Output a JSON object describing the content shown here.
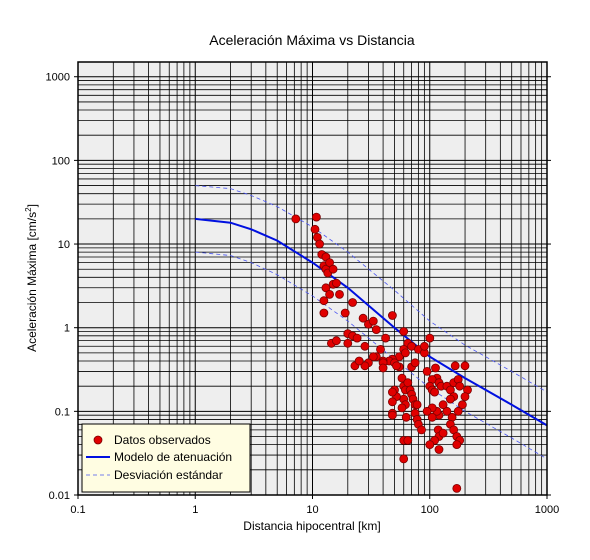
{
  "chart_data": {
    "type": "scatter",
    "title": "Aceleración Máxima vs Distancia",
    "xlabel": "Distancia hipocentral [km]",
    "ylabel_main": "Aceleración Máxima [cm/s",
    "ylabel_sup": "2",
    "ylabel_end": "]",
    "x_scale": "log",
    "y_scale": "log",
    "xlim": [
      0.1,
      1000
    ],
    "ylim": [
      0.01,
      1500
    ],
    "grid": true,
    "legend_position": "bottom-left",
    "x_ticks": [
      {
        "value": 0.1,
        "label": "0.1"
      },
      {
        "value": 1,
        "label": "1"
      },
      {
        "value": 10,
        "label": "10"
      },
      {
        "value": 100,
        "label": "100"
      },
      {
        "value": 1000,
        "label": "1000"
      }
    ],
    "y_ticks": [
      {
        "value": 0.01,
        "label": "0.01"
      },
      {
        "value": 0.1,
        "label": "0.1"
      },
      {
        "value": 1,
        "label": "1"
      },
      {
        "value": 10,
        "label": "10"
      },
      {
        "value": 100,
        "label": "100"
      },
      {
        "value": 1000,
        "label": "1000"
      }
    ],
    "series": [
      {
        "name": "Datos observados",
        "kind": "points",
        "color": "#e00000",
        "edge_color": "#7a0000",
        "points": [
          [
            7.2,
            20
          ],
          [
            10.8,
            21
          ],
          [
            10.5,
            15
          ],
          [
            11,
            12
          ],
          [
            11.5,
            10
          ],
          [
            12,
            7.5
          ],
          [
            13,
            7
          ],
          [
            12.5,
            5.5
          ],
          [
            13,
            5
          ],
          [
            14,
            6
          ],
          [
            13.5,
            4.5
          ],
          [
            15,
            5
          ],
          [
            15,
            3.3
          ],
          [
            16,
            3.4
          ],
          [
            13,
            3
          ],
          [
            14,
            2.5
          ],
          [
            17,
            2.5
          ],
          [
            12.5,
            2.1
          ],
          [
            22,
            2
          ],
          [
            12.5,
            1.5
          ],
          [
            19,
            1.5
          ],
          [
            27,
            1.3
          ],
          [
            30,
            1.1
          ],
          [
            33,
            1.2
          ],
          [
            48,
            1.4
          ],
          [
            20,
            0.85
          ],
          [
            22,
            0.8
          ],
          [
            24,
            0.75
          ],
          [
            28,
            0.6
          ],
          [
            14.5,
            0.65
          ],
          [
            16,
            0.7
          ],
          [
            20,
            0.65
          ],
          [
            35,
            0.95
          ],
          [
            42,
            0.75
          ],
          [
            60,
            0.9
          ],
          [
            65,
            0.65
          ],
          [
            70,
            0.6
          ],
          [
            80,
            0.55
          ],
          [
            60,
            0.55
          ],
          [
            55,
            0.45
          ],
          [
            62,
            0.5
          ],
          [
            48,
            0.42
          ],
          [
            45,
            0.4
          ],
          [
            50,
            0.38
          ],
          [
            55,
            0.34
          ],
          [
            40,
            0.4
          ],
          [
            40,
            0.38
          ],
          [
            35,
            0.45
          ],
          [
            38,
            0.55
          ],
          [
            33,
            0.45
          ],
          [
            30,
            0.38
          ],
          [
            28,
            0.35
          ],
          [
            23,
            0.35
          ],
          [
            25,
            0.4
          ],
          [
            40,
            0.33
          ],
          [
            52,
            0.35
          ],
          [
            70,
            0.34
          ],
          [
            75,
            0.38
          ],
          [
            90,
            0.5
          ],
          [
            100,
            0.75
          ],
          [
            90,
            0.6
          ],
          [
            95,
            0.3
          ],
          [
            112,
            0.33
          ],
          [
            115,
            0.25
          ],
          [
            105,
            0.24
          ],
          [
            100,
            0.2
          ],
          [
            105,
            0.18
          ],
          [
            110,
            0.17
          ],
          [
            120,
            0.22
          ],
          [
            125,
            0.2
          ],
          [
            140,
            0.2
          ],
          [
            150,
            0.18
          ],
          [
            160,
            0.22
          ],
          [
            165,
            0.35
          ],
          [
            175,
            0.24
          ],
          [
            200,
            0.35
          ],
          [
            210,
            0.18
          ],
          [
            180,
            0.2
          ],
          [
            160,
            0.15
          ],
          [
            150,
            0.14
          ],
          [
            175,
            0.1
          ],
          [
            190,
            0.12
          ],
          [
            200,
            0.15
          ],
          [
            155,
            0.085
          ],
          [
            140,
            0.1
          ],
          [
            130,
            0.12
          ],
          [
            120,
            0.09
          ],
          [
            115,
            0.1
          ],
          [
            105,
            0.11
          ],
          [
            95,
            0.1
          ],
          [
            105,
            0.085
          ],
          [
            118,
            0.06
          ],
          [
            120,
            0.05
          ],
          [
            130,
            0.055
          ],
          [
            150,
            0.07
          ],
          [
            160,
            0.06
          ],
          [
            170,
            0.05
          ],
          [
            180,
            0.045
          ],
          [
            110,
            0.045
          ],
          [
            100,
            0.04
          ],
          [
            120,
            0.035
          ],
          [
            170,
            0.04
          ],
          [
            58,
            0.25
          ],
          [
            60,
            0.2
          ],
          [
            62,
            0.18
          ],
          [
            65,
            0.22
          ],
          [
            68,
            0.18
          ],
          [
            70,
            0.16
          ],
          [
            72,
            0.14
          ],
          [
            75,
            0.12
          ],
          [
            78,
            0.12
          ],
          [
            60,
            0.14
          ],
          [
            62,
            0.12
          ],
          [
            58,
            0.11
          ],
          [
            50,
            0.18
          ],
          [
            52,
            0.15
          ],
          [
            48,
            0.17
          ],
          [
            48,
            0.13
          ],
          [
            48,
            0.095
          ],
          [
            48,
            0.09
          ],
          [
            75,
            0.095
          ],
          [
            78,
            0.08
          ],
          [
            80,
            0.07
          ],
          [
            85,
            0.06
          ],
          [
            63,
            0.085
          ],
          [
            60,
            0.045
          ],
          [
            65,
            0.045
          ],
          [
            60,
            0.027
          ],
          [
            170,
            0.012
          ]
        ]
      },
      {
        "name": "Modelo de atenuación",
        "kind": "line",
        "color": "#0010e0",
        "points": [
          [
            1,
            20
          ],
          [
            2,
            18
          ],
          [
            3,
            15
          ],
          [
            5,
            11
          ],
          [
            10,
            6
          ],
          [
            20,
            3
          ],
          [
            50,
            1
          ],
          [
            100,
            0.45
          ],
          [
            200,
            0.25
          ],
          [
            500,
            0.12
          ],
          [
            1000,
            0.068
          ]
        ]
      },
      {
        "name": "Desviación estándar",
        "kind": "dashed",
        "color": "#4a55f0",
        "points": [
          [
            1,
            50
          ],
          [
            2,
            46
          ],
          [
            3,
            38
          ],
          [
            5,
            28
          ],
          [
            10,
            16
          ],
          [
            20,
            8
          ],
          [
            50,
            2.8
          ],
          [
            100,
            1.2
          ],
          [
            200,
            0.62
          ],
          [
            500,
            0.3
          ],
          [
            1000,
            0.17
          ]
        ]
      },
      {
        "name": "Desviación estándar",
        "kind": "dashed",
        "color": "#4a55f0",
        "points": [
          [
            1,
            8
          ],
          [
            2,
            7.3
          ],
          [
            3,
            6
          ],
          [
            5,
            4.3
          ],
          [
            10,
            2.4
          ],
          [
            20,
            1.2
          ],
          [
            50,
            0.42
          ],
          [
            100,
            0.19
          ],
          [
            200,
            0.1
          ],
          [
            500,
            0.048
          ],
          [
            1000,
            0.027
          ]
        ]
      }
    ],
    "legend": [
      {
        "label": "Datos observados",
        "symbol": "point"
      },
      {
        "label": "Modelo de atenuación",
        "symbol": "line"
      },
      {
        "label": "Desviación estándar",
        "symbol": "dashed"
      }
    ],
    "colors": {
      "plot_background": "#eeeeee",
      "legend_background": "#fffde2",
      "grid": "#000000"
    }
  }
}
